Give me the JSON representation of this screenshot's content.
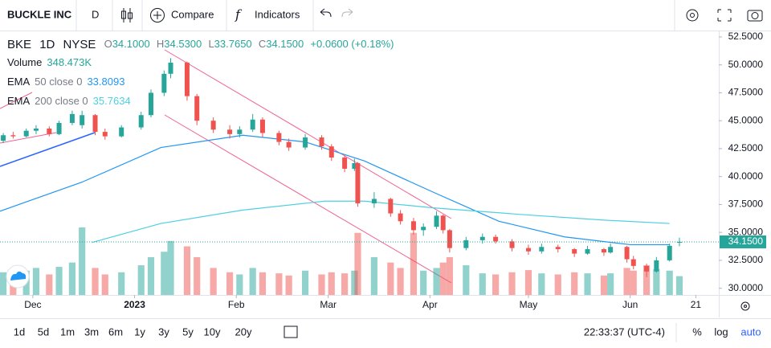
{
  "toolbar": {
    "symbol": "BUCKLE INC",
    "interval": "D",
    "compare": "Compare",
    "indicators": "Indicators"
  },
  "legend": {
    "symbol": "BKE",
    "interval": "1D",
    "exchange": "NYSE",
    "o_label": "O",
    "open": "34.1000",
    "h_label": "H",
    "high": "34.5300",
    "l_label": "L",
    "low": "33.7650",
    "c_label": "C",
    "close": "34.1500",
    "change": "+0.0600 (+0.18%)",
    "volume_label": "Volume",
    "volume": "348.473K",
    "ema50_label": "EMA",
    "ema50_params": "50 close 0",
    "ema50_value": "33.8093",
    "ema200_label": "EMA",
    "ema200_params": "200 close 0",
    "ema200_value": "35.7634"
  },
  "chart_data": {
    "type": "candlestick",
    "x": [
      "2022-11-22",
      "2022-11-25",
      "2022-11-29",
      "2022-12-02",
      "2022-12-06",
      "2022-12-09",
      "2022-12-13",
      "2022-12-16",
      "2022-12-20",
      "2022-12-23",
      "2022-12-28",
      "2023-01-03",
      "2023-01-06",
      "2023-01-10",
      "2023-01-12",
      "2023-01-17",
      "2023-01-20",
      "2023-01-25",
      "2023-01-30",
      "2023-02-02",
      "2023-02-06",
      "2023-02-09",
      "2023-02-14",
      "2023-02-17",
      "2023-02-22",
      "2023-02-27",
      "2023-03-02",
      "2023-03-06",
      "2023-03-09",
      "2023-03-10",
      "2023-03-15",
      "2023-03-20",
      "2023-03-23",
      "2023-03-27",
      "2023-03-30",
      "2023-04-03",
      "2023-04-05",
      "2023-04-07",
      "2023-04-12",
      "2023-04-17",
      "2023-04-21",
      "2023-04-26",
      "2023-05-01",
      "2023-05-05",
      "2023-05-10",
      "2023-05-15",
      "2023-05-19",
      "2023-05-24",
      "2023-05-26",
      "2023-05-31",
      "2023-06-02",
      "2023-06-06",
      "2023-06-09",
      "2023-06-13",
      "2023-06-16"
    ],
    "open": [
      43.2,
      43.7,
      43.6,
      44.1,
      44.3,
      43.8,
      44.8,
      44.6,
      45.5,
      44.0,
      43.6,
      44.4,
      45.5,
      47.5,
      49.2,
      50.2,
      47.2,
      45.0,
      44.2,
      43.8,
      44.2,
      45.1,
      43.9,
      43.1,
      42.6,
      43.5,
      42.7,
      41.7,
      40.7,
      41.2,
      37.6,
      38.0,
      36.7,
      36.0,
      35.2,
      35.5,
      36.5,
      35.2,
      33.6,
      34.3,
      34.6,
      34.2,
      33.6,
      33.3,
      33.7,
      33.5,
      33.1,
      33.5,
      33.2,
      33.7,
      32.6,
      32.0,
      31.5,
      32.5,
      34.1
    ],
    "high": [
      43.9,
      44.0,
      44.3,
      44.6,
      44.5,
      45.0,
      45.9,
      45.9,
      45.6,
      44.3,
      44.6,
      45.8,
      47.8,
      49.5,
      50.6,
      50.3,
      47.4,
      45.3,
      44.6,
      44.5,
      45.6,
      45.3,
      44.1,
      43.4,
      43.8,
      43.7,
      42.9,
      41.9,
      41.6,
      41.3,
      38.6,
      38.1,
      37.0,
      36.3,
      35.8,
      36.9,
      36.6,
      35.3,
      34.6,
      34.9,
      34.8,
      34.4,
      33.9,
      34.0,
      33.9,
      33.6,
      33.8,
      33.6,
      34.0,
      33.8,
      32.9,
      32.2,
      32.8,
      34.0,
      34.53
    ],
    "low": [
      43.0,
      43.4,
      43.5,
      43.8,
      43.6,
      43.7,
      44.6,
      44.3,
      43.7,
      43.3,
      43.5,
      44.2,
      45.3,
      47.2,
      48.8,
      46.8,
      44.6,
      43.9,
      43.4,
      43.5,
      44.0,
      43.5,
      42.8,
      42.3,
      42.4,
      42.4,
      41.4,
      40.4,
      40.5,
      37.3,
      37.2,
      36.4,
      35.7,
      34.8,
      34.7,
      35.3,
      34.9,
      33.2,
      33.4,
      34.0,
      34.0,
      33.3,
      33.0,
      33.1,
      33.2,
      32.8,
      33.0,
      32.9,
      33.1,
      32.3,
      31.7,
      31.0,
      31.4,
      32.4,
      33.765
    ],
    "close": [
      43.7,
      43.6,
      44.1,
      44.3,
      43.8,
      44.8,
      45.6,
      45.5,
      44.0,
      43.6,
      44.4,
      45.5,
      47.5,
      49.2,
      50.2,
      47.2,
      45.0,
      44.2,
      43.8,
      44.2,
      45.1,
      43.9,
      43.1,
      42.6,
      43.5,
      42.7,
      41.7,
      40.7,
      41.2,
      37.6,
      38.0,
      36.7,
      36.0,
      35.2,
      35.5,
      36.5,
      35.2,
      33.6,
      34.3,
      34.6,
      34.2,
      33.6,
      33.3,
      33.7,
      33.5,
      33.1,
      33.5,
      33.2,
      33.7,
      32.6,
      32.0,
      31.5,
      32.5,
      33.8,
      34.15
    ],
    "volume": [
      420000,
      300000,
      450000,
      500000,
      380000,
      520000,
      600000,
      1250000,
      500000,
      380000,
      420000,
      550000,
      700000,
      800000,
      1000000,
      900000,
      700000,
      500000,
      420000,
      380000,
      500000,
      420000,
      400000,
      360000,
      450000,
      380000,
      420000,
      400000,
      450000,
      1150000,
      700000,
      600000,
      500000,
      1150000,
      450000,
      500000,
      600000,
      700000,
      550000,
      400000,
      380000,
      420000,
      460000,
      400000,
      380000,
      420000,
      400000,
      360000,
      400000,
      500000,
      450000,
      550000,
      480000,
      450000,
      348473
    ],
    "up_color": "#26a69a",
    "down_color": "#ef5350",
    "lines": [
      {
        "name": "EMA 50",
        "color": "#2196f3",
        "x": [
          "2022-11-21",
          "2022-12-16",
          "2023-01-09",
          "2023-02-03",
          "2023-02-22",
          "2023-03-12",
          "2023-04-02",
          "2023-04-22",
          "2023-05-12",
          "2023-06-01",
          "2023-06-13"
        ],
        "values": [
          36.9,
          39.5,
          42.6,
          43.7,
          43.1,
          41.4,
          38.6,
          36.0,
          34.6,
          33.9,
          33.9
        ]
      },
      {
        "name": "EMA 200",
        "color": "#4dd0e1",
        "x": [
          "2022-12-19",
          "2023-01-09",
          "2023-02-03",
          "2023-02-28",
          "2023-03-12",
          "2023-04-02",
          "2023-04-29",
          "2023-05-24",
          "2023-06-13"
        ],
        "values": [
          34.1,
          35.8,
          37.0,
          37.8,
          37.8,
          37.2,
          36.6,
          36.1,
          35.8
        ]
      }
    ],
    "xlim": [
      "2022-11-21",
      "2023-06-28"
    ],
    "xticks": [
      {
        "value": "2022-12-01",
        "label": "Dec"
      },
      {
        "value": "2023-01-01",
        "label": "2023"
      },
      {
        "value": "2023-02-01",
        "label": "Feb"
      },
      {
        "value": "2023-03-01",
        "label": "Mar"
      },
      {
        "value": "2023-04-01",
        "label": "Apr"
      },
      {
        "value": "2023-05-01",
        "label": "May"
      },
      {
        "value": "2023-06-01",
        "label": "Jun"
      },
      {
        "value": "2023-06-21",
        "label": "21"
      }
    ],
    "ylim": [
      29.4,
      53.0
    ],
    "yticks": [
      {
        "value": 52.5,
        "label": "52.5000"
      },
      {
        "value": 50,
        "label": "50.0000"
      },
      {
        "value": 47.5,
        "label": "47.5000"
      },
      {
        "value": 45,
        "label": "45.0000"
      },
      {
        "value": 42.5,
        "label": "42.5000"
      },
      {
        "value": 40,
        "label": "40.0000"
      },
      {
        "value": 37.5,
        "label": "37.5000"
      },
      {
        "value": 35,
        "label": "35.0000"
      },
      {
        "value": 32.5,
        "label": "32.5000"
      },
      {
        "value": 30,
        "label": "30.0000"
      }
    ],
    "last_price": {
      "value": 34.15,
      "label": "34.1500"
    }
  },
  "bottom_bar": {
    "ranges": [
      "1d",
      "5d",
      "1m",
      "3m",
      "6m",
      "1y",
      "3y",
      "5y",
      "10y",
      "20y"
    ],
    "time": "22:33:37 (UTC-4)",
    "percent": "%",
    "log": "log",
    "auto": "auto"
  }
}
